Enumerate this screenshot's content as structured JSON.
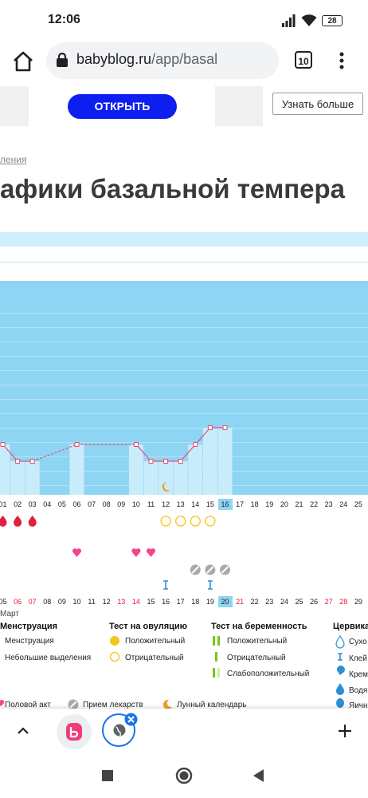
{
  "status_bar": {
    "time": "12:06",
    "battery": "28"
  },
  "browser": {
    "url_host": "babyblog.ru",
    "url_path": "/app/basal",
    "tab_count": "10"
  },
  "banner": {
    "open_label": "ОТКРЫТЬ",
    "learn_more_label": "Узнать больше"
  },
  "page": {
    "breadcrumb": "ления",
    "title": "афики базальной темпера"
  },
  "chart_data": {
    "type": "line",
    "cycle_days": [
      "01",
      "02",
      "03",
      "04",
      "05",
      "06",
      "07",
      "08",
      "09",
      "10",
      "11",
      "12",
      "13",
      "14",
      "15",
      "16",
      "17",
      "18",
      "19",
      "20",
      "21",
      "22",
      "23",
      "24",
      "25"
    ],
    "current_day": "16",
    "calendar_dates": [
      "05",
      "06",
      "07",
      "08",
      "09",
      "10",
      "11",
      "12",
      "13",
      "14",
      "15",
      "16",
      "17",
      "18",
      "19",
      "20",
      "21",
      "22",
      "23",
      "24",
      "25",
      "26",
      "27",
      "28",
      "29"
    ],
    "calendar_red": [
      "06",
      "07",
      "13",
      "14",
      "21",
      "27",
      "28"
    ],
    "today_date": "20",
    "month_label": "Март",
    "temperature_relative": [
      {
        "day": "01",
        "level": 3
      },
      {
        "day": "02",
        "level": 2
      },
      {
        "day": "03",
        "level": 2
      },
      {
        "day": "06",
        "level": 3
      },
      {
        "day": "10",
        "level": 3
      },
      {
        "day": "11",
        "level": 2
      },
      {
        "day": "12",
        "level": 2
      },
      {
        "day": "13",
        "level": 2
      },
      {
        "day": "14",
        "level": 3
      },
      {
        "day": "15",
        "level": 4
      },
      {
        "day": "16",
        "level": 4
      }
    ],
    "menstruation_days": [
      "01",
      "02",
      "03"
    ],
    "ovulation_test_negative_days": [
      "12",
      "13",
      "14",
      "15"
    ],
    "intercourse_days": [
      "06",
      "10",
      "11"
    ],
    "medication_days": [
      "14",
      "15",
      "16"
    ],
    "cervical_sticky_days": [
      "12",
      "15"
    ],
    "lunar_day": "12"
  },
  "legend": {
    "menstruation": {
      "title": "Менструация",
      "items": [
        "Менструация",
        "Небольшие выделения"
      ]
    },
    "ovulation_test": {
      "title": "Тест на овуляцию",
      "items": [
        "Положительный",
        "Отрицательный"
      ]
    },
    "pregnancy_test": {
      "title": "Тест на беременность",
      "items": [
        "Положительный",
        "Отрицательный",
        "Слабоположительный"
      ]
    },
    "cervical": {
      "title": "Цервика",
      "items": [
        "Сухо",
        "Клей",
        "Крем",
        "Водя",
        "Яичн"
      ]
    },
    "other": [
      "Половой акт",
      "Прием лекарств",
      "Лунный календарь"
    ]
  },
  "colors": {
    "chart_bg": "#8dd5f3",
    "bar": "#c9ecfb",
    "line": "#e0507a",
    "red": "#e0203c",
    "heart": "#f0468c",
    "ovulation": "#f5c518",
    "pregnancy": "#7cc618",
    "accent_button": "#0d1ef0"
  }
}
